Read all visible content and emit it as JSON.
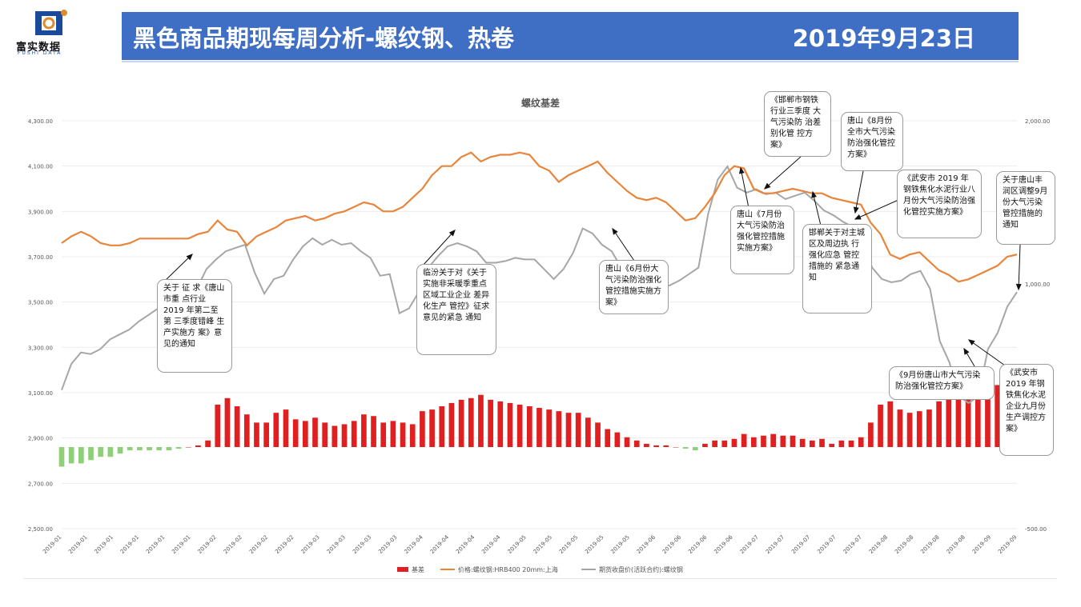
{
  "header": {
    "logo_text": "富实数据",
    "logo_sub": "FUSHI DATA",
    "title": "黑色商品期现每周分析-螺纹钢、热卷",
    "date": "2019年9月23日"
  },
  "colors": {
    "header_bg": "#3f6fc5",
    "basis_pos": "#e02020",
    "basis_neg": "#8fcf7a",
    "spot": "#e8853a",
    "futures": "#a6a6a6"
  },
  "chart_data": {
    "type": "line+bar",
    "title": "螺纹基差",
    "left_axis": {
      "ticks": [
        "4,300.00",
        "4,100.00",
        "3,900.00",
        "3,700.00",
        "3,500.00",
        "3,300.00",
        "3,100.00",
        "2,900.00",
        "2,700.00",
        "2,500.00"
      ],
      "min": 2500,
      "max": 4300
    },
    "right_axis": {
      "ticks": [
        "2,000.00",
        "1,000.00",
        "-500.00"
      ],
      "min": -500,
      "max": 2000
    },
    "x_ticks": [
      "2019-01",
      "2019-01",
      "2019-01",
      "2019-01",
      "2019-01",
      "2019-01",
      "2019-02",
      "2019-02",
      "2019-02",
      "2019-02",
      "2019-03",
      "2019-03",
      "2019-03",
      "2019-03",
      "2019-04",
      "2019-04",
      "2019-04",
      "2019-04",
      "2019-05",
      "2019-05",
      "2019-05",
      "2019-05",
      "2019-05",
      "2019-06",
      "2019-06",
      "2019-06",
      "2019-06",
      "2019-07",
      "2019-07",
      "2019-07",
      "2019-07",
      "2019-07",
      "2019-08",
      "2019-08",
      "2019-08",
      "2019-08",
      "2019-09",
      "2019-09"
    ],
    "legend": [
      "基差",
      "价格:螺纹钢:HRB400 20mm:上海",
      "期货收盘价(活跃合约):螺纹钢"
    ],
    "legend_position": "bottom",
    "series": [
      {
        "name": "价格:螺纹钢:HRB400 20mm:上海",
        "axis": "left",
        "values": [
          3760,
          3790,
          3810,
          3790,
          3760,
          3750,
          3750,
          3760,
          3780,
          3780,
          3780,
          3780,
          3780,
          3780,
          3800,
          3810,
          3860,
          3820,
          3810,
          3750,
          3790,
          3810,
          3830,
          3860,
          3870,
          3880,
          3860,
          3870,
          3890,
          3900,
          3920,
          3940,
          3930,
          3900,
          3900,
          3920,
          3960,
          4000,
          4060,
          4100,
          4100,
          4140,
          4160,
          4120,
          4140,
          4150,
          4150,
          4160,
          4150,
          4100,
          4080,
          4030,
          4060,
          4080,
          4100,
          4120,
          4070,
          4030,
          3990,
          3960,
          3950,
          3960,
          3940,
          3900,
          3860,
          3870,
          3920,
          3980,
          4060,
          4100,
          4090,
          4000,
          3980,
          3980,
          3990,
          4000,
          3990,
          3980,
          3980,
          3960,
          3950,
          3940,
          3930,
          3850,
          3800,
          3710,
          3690,
          3710,
          3720,
          3680,
          3640,
          3620,
          3590,
          3600,
          3620,
          3640,
          3660,
          3700,
          3710
        ]
      },
      {
        "name": "期货收盘价(活跃合约):螺纹钢",
        "axis": "right",
        "values": [
          350,
          510,
          580,
          570,
          600,
          660,
          690,
          720,
          770,
          810,
          850,
          980,
          1000,
          990,
          970,
          1090,
          1150,
          1200,
          1220,
          1240,
          1070,
          940,
          1030,
          1050,
          1150,
          1230,
          1280,
          1240,
          1270,
          1240,
          1250,
          1200,
          1160,
          1050,
          1060,
          820,
          850,
          950,
          1100,
          1170,
          1230,
          1250,
          1230,
          1200,
          1130,
          1130,
          1140,
          1160,
          1150,
          1150,
          1090,
          1030,
          1090,
          1190,
          1340,
          1310,
          1240,
          1200,
          1100,
          1050,
          1050,
          1030,
          1000,
          990,
          1020,
          1060,
          1100,
          1430,
          1640,
          1720,
          1590,
          1560,
          1580,
          1550,
          1560,
          1520,
          1540,
          1560,
          1510,
          1450,
          1420,
          1380,
          1350,
          1250,
          1100,
          1030,
          1010,
          1020,
          1060,
          1080,
          970,
          650,
          520,
          310,
          270,
          310,
          600,
          700,
          860,
          950
        ]
      },
      {
        "name": "基差",
        "axis": "right",
        "type": "bar",
        "values": [
          -120,
          -100,
          -100,
          -80,
          -60,
          -60,
          -40,
          -20,
          -20,
          -20,
          -20,
          -20,
          -10,
          0,
          10,
          40,
          260,
          300,
          250,
          200,
          150,
          150,
          210,
          230,
          170,
          160,
          180,
          150,
          130,
          140,
          160,
          200,
          190,
          150,
          160,
          150,
          140,
          220,
          230,
          250,
          270,
          290,
          300,
          320,
          290,
          280,
          270,
          260,
          250,
          240,
          230,
          220,
          210,
          210,
          180,
          150,
          110,
          90,
          60,
          40,
          20,
          10,
          10,
          0,
          -10,
          -20,
          20,
          40,
          40,
          50,
          80,
          60,
          70,
          80,
          70,
          70,
          50,
          40,
          50,
          20,
          40,
          40,
          60,
          150,
          260,
          280,
          230,
          210,
          220,
          230,
          280,
          330,
          390,
          420,
          430,
          400,
          380,
          350,
          340
        ]
      }
    ],
    "annotations": [
      "关于 征 求《唐山市重 点行业2019 年第二至第 三季度错峰 生产实施方 案》意见的通知",
      "临汾关于对《关于实施非采暖季重点区域工业企业 差异化生产 管控》征求 意见的紧急 通知",
      "唐山《6月份大气污染防治强化管控措施实施方案》",
      "《邯郸市钢铁 行业三季度 大气污染防 治差别化管 控方案》",
      "唐山《7月份大气污染防治强化管控措施实施方案》",
      "邯郸关于对主城 区及周边执 行强化应急 管控措施的 紧急通知",
      "唐山《8月份全市大气污染防治强化管控方案》",
      "《武安市 2019 年钢铁焦化水泥行业八月份大气污染防治强化管控实施方案》",
      "关于唐山丰润区调整9月份大气污染管控措施的通知",
      "《9月份唐山市大气污染防治强化管控方案》",
      "《武安市2019 年钢铁焦化水泥企业九月份生产调控方案》"
    ]
  }
}
